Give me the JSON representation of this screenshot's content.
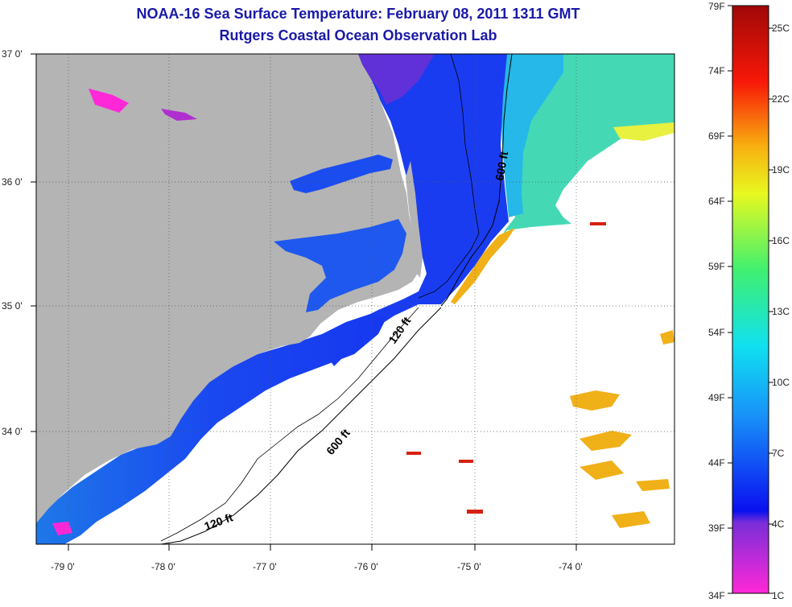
{
  "header": {
    "title": "NOAA-16 Sea Surface Temperature:  February 08, 2011 1311 GMT",
    "subtitle": "Rutgers Coastal Ocean Observation Lab"
  },
  "axes": {
    "lat_labels": [
      "37 0'",
      "36 0'",
      "35 0'",
      "34 0'"
    ],
    "lon_labels": [
      "-79 0'",
      "-78 0'",
      "-77 0'",
      "-76 0'",
      "-75 0'",
      "-74 0'"
    ]
  },
  "contours": {
    "label_600_north": "600 ft",
    "label_120_mid": "120 ft",
    "label_600_south": "600 ft",
    "label_120_south": "120 ft"
  },
  "colorbar": {
    "fahrenheit": [
      "79F",
      "74F",
      "69F",
      "64F",
      "59F",
      "54F",
      "49F",
      "44F",
      "39F",
      "34F"
    ],
    "celsius": [
      "25C",
      "22C",
      "19C",
      "16C",
      "13C",
      "10C",
      "7C",
      "4C",
      "1C"
    ]
  },
  "colors": {
    "land": "#b4b4b4",
    "title": "#1a1aa8",
    "cold": "#1e3cf0",
    "warm": "#f0a818"
  }
}
